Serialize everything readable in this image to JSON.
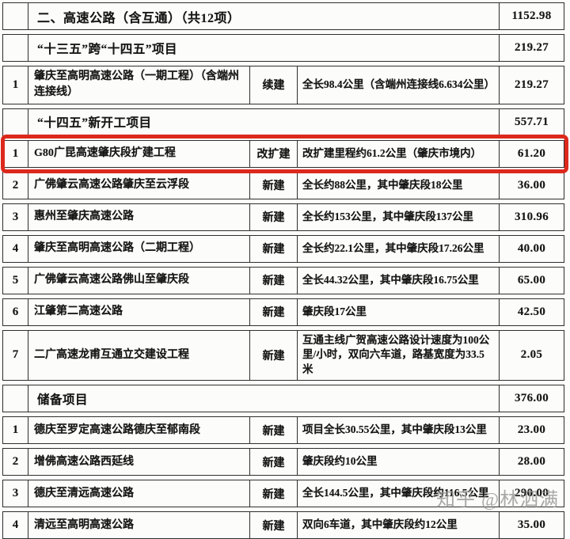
{
  "watermark": {
    "text": "知乎 @林泗满"
  },
  "table": {
    "highlight_color": "#dc291c",
    "border_color": "#2e2e2e",
    "rows": [
      {
        "kind": "section",
        "top": true,
        "num": "",
        "title": "二、高速公路（含互通）（共12项）",
        "amount": "1152.98"
      },
      {
        "kind": "section",
        "num": "",
        "title": "“十三五”跨“十四五”项目",
        "amount": "219.27"
      },
      {
        "kind": "project",
        "num": "1",
        "name": "肇庆至高明高速公路（一期工程）（含端州连接线）",
        "type": "续建",
        "desc": "全长98.4公里（含端州连接线6.634公里）",
        "amount": "219.27"
      },
      {
        "kind": "section",
        "num": "",
        "title": "“十四五”新开工项目",
        "amount": "557.71"
      },
      {
        "kind": "project",
        "highlight": true,
        "num": "1",
        "name": "G80广昆高速肇庆段扩建工程",
        "type": "改扩建",
        "desc": "改扩建里程约61.2公里（肇庆市境内）",
        "amount": "61.20"
      },
      {
        "kind": "project",
        "num": "2",
        "name": "广佛肇云高速公路肇庆至云浮段",
        "type": "新建",
        "desc": "全长约88公里，其中肇庆段18公里",
        "amount": "36.00"
      },
      {
        "kind": "project",
        "num": "3",
        "name": "惠州至肇庆高速公路",
        "type": "新建",
        "desc": "全长约153公里，其中肇庆段137公里",
        "amount": "310.96"
      },
      {
        "kind": "project",
        "num": "4",
        "name": "肇庆至高明高速公路（二期工程）",
        "type": "新建",
        "desc": "全长约22.1公里，其中肇庆段17.26公里",
        "amount": "40.00"
      },
      {
        "kind": "project",
        "num": "5",
        "name": "广佛肇云高速公路佛山至肇庆段",
        "type": "新建",
        "desc": "全长44.32公里，其中肇庆段16.75公里",
        "amount": "65.00"
      },
      {
        "kind": "project",
        "num": "6",
        "name": "江肇第二高速公路",
        "type": "新建",
        "desc": "肇庆段17公里",
        "amount": "42.50"
      },
      {
        "kind": "project",
        "num": "7",
        "name": "二广高速龙甫互通立交建设工程",
        "type": "新建",
        "desc": "互通主线广贺高速公路设计速度为100公里/小时，双向六车道，路基宽度为33.5米",
        "amount": "2.05"
      },
      {
        "kind": "section",
        "num": "",
        "title": "储备项目",
        "amount": "376.00"
      },
      {
        "kind": "project",
        "num": "1",
        "name": "德庆至罗定高速公路德庆至郁南段",
        "type": "新建",
        "desc": "项目全长30.55公里，其中肇庆段13公里",
        "amount": "23.00"
      },
      {
        "kind": "project",
        "num": "2",
        "name": "增佛高速公路西延线",
        "type": "新建",
        "desc": "肇庆段约10公里",
        "amount": "28.00"
      },
      {
        "kind": "project",
        "num": "3",
        "name": "德庆至清远高速公路",
        "type": "新建",
        "desc": "全长144.5公里，其中肇庆段约116.5公里",
        "amount": "290.00"
      },
      {
        "kind": "project",
        "num": "4",
        "name": "清远至高明高速公路",
        "type": "新建",
        "desc": "双向6车道，其中肇庆段约12公里",
        "amount": "35.00"
      }
    ]
  }
}
